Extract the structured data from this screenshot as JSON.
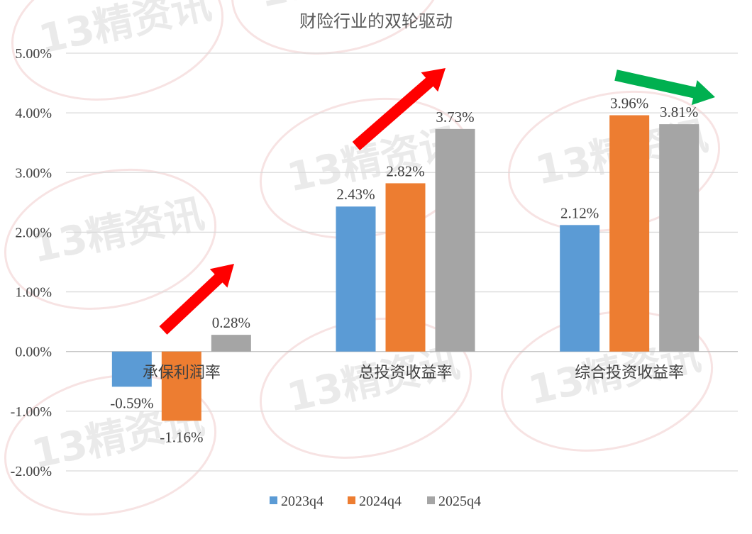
{
  "chart_data": {
    "type": "bar",
    "title": "财险行业的双轮驱动",
    "categories": [
      "承保利润率",
      "总投资收益率",
      "综合投资收益率"
    ],
    "series": [
      {
        "name": "2023q4",
        "values": [
          -0.59,
          2.43,
          2.12
        ],
        "labels": [
          "-0.59%",
          "2.43%",
          "2.12%"
        ]
      },
      {
        "name": "2024q4",
        "values": [
          -1.16,
          2.82,
          3.96
        ],
        "labels": [
          "-1.16%",
          "2.82%",
          "3.96%"
        ]
      },
      {
        "name": "2025q4",
        "values": [
          0.28,
          3.73,
          3.81
        ],
        "labels": [
          "0.28%",
          "3.73%",
          "3.81%"
        ]
      }
    ],
    "ylim": [
      -2,
      5
    ],
    "yticks": [
      5,
      4,
      3,
      2,
      1,
      0,
      -1,
      -2
    ],
    "ytick_labels": [
      "5.00%",
      "4.00%",
      "3.00%",
      "2.00%",
      "1.00%",
      "0.00%",
      "-1.00%",
      "-2.00%"
    ],
    "grid": true,
    "legend_position": "bottom",
    "colors": {
      "2023q4": "#5b9bd5",
      "2024q4": "#ed7d31",
      "2025q4": "#a5a5a5"
    },
    "annotations": [
      {
        "type": "arrow",
        "direction": "up",
        "color": "#ff0000",
        "category": "承保利润率"
      },
      {
        "type": "arrow",
        "direction": "up",
        "color": "#ff0000",
        "category": "总投资收益率"
      },
      {
        "type": "arrow",
        "direction": "down",
        "color": "#00b050",
        "category": "综合投资收益率"
      }
    ],
    "watermark": "13精资讯"
  }
}
